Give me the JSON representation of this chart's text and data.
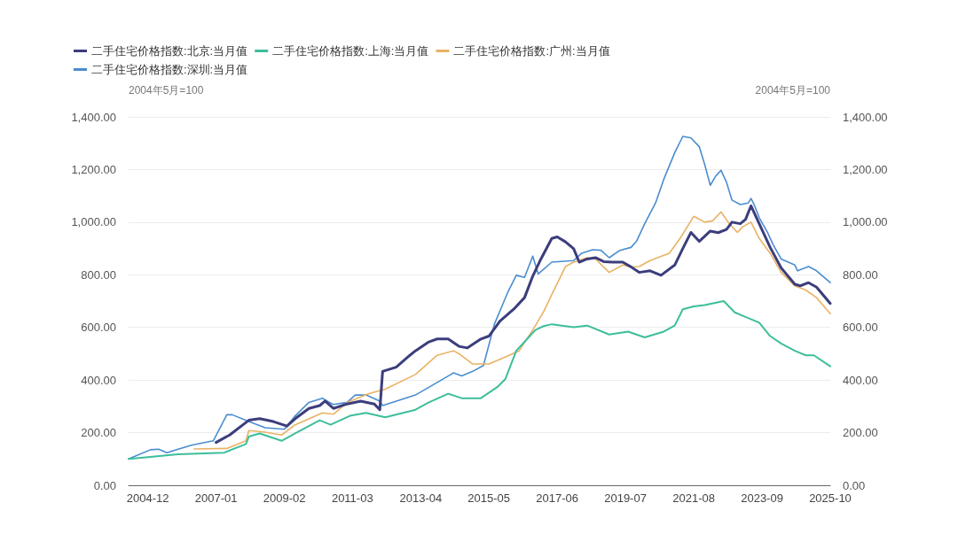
{
  "chart_data": {
    "type": "line",
    "ylabel": "2004年5月=100",
    "y2label": "2004年5月=100",
    "xlim": [
      "2004-05",
      "2025-10"
    ],
    "xticks": [
      "2004-12",
      "2007-01",
      "2009-02",
      "2011-03",
      "2013-04",
      "2015-05",
      "2017-06",
      "2019-07",
      "2021-08",
      "2023-09",
      "2025-10"
    ],
    "ylim": [
      0,
      1400
    ],
    "yticks": [
      {
        "value": 0,
        "label": "0.00"
      },
      {
        "value": 200,
        "label": "200.00"
      },
      {
        "value": 400,
        "label": "400.00"
      },
      {
        "value": 600,
        "label": "600.00"
      },
      {
        "value": 800,
        "label": "800.00"
      },
      {
        "value": 1000,
        "label": "1,000.00"
      },
      {
        "value": 1200,
        "label": "1,200.00"
      },
      {
        "value": 1400,
        "label": "1,400.00"
      }
    ],
    "y2lim": [
      0,
      1400
    ],
    "y2ticks": [
      {
        "value": 0,
        "label": "0.00"
      },
      {
        "value": 200,
        "label": "200.00"
      },
      {
        "value": 400,
        "label": "400.00"
      },
      {
        "value": 600,
        "label": "600.00"
      },
      {
        "value": 800,
        "label": "800.00"
      },
      {
        "value": 1000,
        "label": "1,000.00"
      },
      {
        "value": 1200,
        "label": "1,200.00"
      },
      {
        "value": 1400,
        "label": "1,400.00"
      }
    ],
    "grid": "y",
    "legend": "top left",
    "marker": "none",
    "line_style": "solid",
    "series": [
      {
        "name": "二手住宅价格指数:北京:当月值",
        "color": "#3b3d7c",
        "x": [
          "2007-01",
          "2007-06",
          "2008-01",
          "2008-05",
          "2008-10",
          "2009-03",
          "2009-06",
          "2009-11",
          "2010-03",
          "2010-05",
          "2010-08",
          "2011-01",
          "2011-06",
          "2011-11",
          "2012-01",
          "2012-02",
          "2012-07",
          "2012-12",
          "2013-02",
          "2013-07",
          "2013-10",
          "2014-02",
          "2014-06",
          "2014-09",
          "2015-02",
          "2015-05",
          "2015-09",
          "2016-02",
          "2016-06",
          "2016-09",
          "2016-12",
          "2017-04",
          "2017-06",
          "2017-09",
          "2017-12",
          "2018-02",
          "2018-05",
          "2018-08",
          "2018-11",
          "2019-02",
          "2019-06",
          "2019-09",
          "2019-12",
          "2020-04",
          "2020-08",
          "2021-01",
          "2021-04",
          "2021-07",
          "2021-10",
          "2022-02",
          "2022-05",
          "2022-08",
          "2022-10",
          "2023-01",
          "2023-03",
          "2023-05",
          "2023-08",
          "2023-12",
          "2024-04",
          "2024-09",
          "2024-11",
          "2025-02",
          "2025-05",
          "2025-10"
        ],
        "values": [
          163,
          191,
          247,
          253,
          242,
          225,
          253,
          292,
          303,
          320,
          292,
          309,
          320,
          309,
          287,
          433,
          449,
          494,
          511,
          545,
          556,
          556,
          528,
          522,
          556,
          567,
          624,
          669,
          713,
          795,
          860,
          938,
          944,
          925,
          899,
          848,
          860,
          865,
          850,
          848,
          848,
          830,
          809,
          815,
          798,
          837,
          900,
          961,
          927,
          966,
          960,
          972,
          1000,
          994,
          1010,
          1062,
          994,
          904,
          826,
          764,
          758,
          770,
          753,
          691
        ]
      },
      {
        "name": "二手住宅价格指数:上海:当月值",
        "color": "#3dbe9b",
        "x": [
          "2004-05",
          "2004-12",
          "2005-11",
          "2007-04",
          "2007-12",
          "2008-01",
          "2008-05",
          "2009-01",
          "2009-06",
          "2010-03",
          "2010-07",
          "2011-02",
          "2011-08",
          "2012-03",
          "2013-02",
          "2013-07",
          "2014-02",
          "2014-07",
          "2015-02",
          "2015-08",
          "2015-11",
          "2016-03",
          "2016-07",
          "2016-10",
          "2017-01",
          "2017-04",
          "2017-12",
          "2018-05",
          "2019-01",
          "2019-08",
          "2020-02",
          "2020-09",
          "2021-01",
          "2021-04",
          "2021-08",
          "2021-12",
          "2022-07",
          "2022-11",
          "2023-03",
          "2023-08",
          "2023-12",
          "2024-04",
          "2024-09",
          "2025-01",
          "2025-04",
          "2025-10"
        ],
        "values": [
          100,
          107,
          118,
          124,
          157,
          185,
          197,
          169,
          197,
          247,
          230,
          264,
          275,
          258,
          287,
          315,
          348,
          331,
          331,
          373,
          404,
          511,
          556,
          590,
          605,
          612,
          601,
          607,
          573,
          584,
          562,
          584,
          607,
          669,
          680,
          685,
          700,
          657,
          640,
          618,
          567,
          539,
          511,
          494,
          494,
          452
        ]
      },
      {
        "name": "二手住宅价格指数:广州:当月值",
        "color": "#e9b264",
        "x": [
          "2006-05",
          "2007-05",
          "2007-12",
          "2008-01",
          "2008-07",
          "2009-01",
          "2009-06",
          "2010-04",
          "2010-08",
          "2011-01",
          "2011-09",
          "2012-03",
          "2013-02",
          "2013-10",
          "2014-04",
          "2014-06",
          "2014-11",
          "2015-05",
          "2015-10",
          "2016-04",
          "2016-09",
          "2017-01",
          "2017-04",
          "2017-09",
          "2017-12",
          "2018-05",
          "2018-08",
          "2019-01",
          "2019-06",
          "2019-09",
          "2019-12",
          "2020-04",
          "2020-11",
          "2021-03",
          "2021-08",
          "2021-12",
          "2022-03",
          "2022-06",
          "2022-09",
          "2022-12",
          "2023-02",
          "2023-05",
          "2023-08",
          "2023-12",
          "2024-04",
          "2024-09",
          "2025-01",
          "2025-05",
          "2025-10"
        ],
        "values": [
          138,
          140,
          169,
          208,
          202,
          191,
          230,
          275,
          270,
          315,
          348,
          365,
          421,
          494,
          511,
          500,
          461,
          461,
          483,
          511,
          590,
          660,
          725,
          831,
          848,
          865,
          860,
          809,
          837,
          830,
          831,
          854,
          882,
          938,
          1022,
          1000,
          1005,
          1039,
          994,
          961,
          983,
          1000,
          938,
          882,
          809,
          758,
          742,
          713,
          652
        ]
      },
      {
        "name": "二手住宅价格指数:深圳:当月值",
        "color": "#4a8dd0",
        "x": [
          "2004-05",
          "2005-01",
          "2005-04",
          "2005-07",
          "2006-04",
          "2006-12",
          "2007-05",
          "2007-07",
          "2008-01",
          "2008-07",
          "2009-02",
          "2009-06",
          "2009-11",
          "2010-04",
          "2010-06",
          "2010-08",
          "2011-01",
          "2011-04",
          "2011-08",
          "2012-01",
          "2012-02",
          "2013-02",
          "2014-04",
          "2014-07",
          "2014-11",
          "2015-03",
          "2015-07",
          "2015-12",
          "2016-03",
          "2016-06",
          "2016-09",
          "2016-11",
          "2017-04",
          "2017-12",
          "2018-03",
          "2018-07",
          "2018-10",
          "2019-01",
          "2019-05",
          "2019-09",
          "2019-11",
          "2020-02",
          "2020-06",
          "2020-09",
          "2021-01",
          "2021-04",
          "2021-07",
          "2021-10",
          "2021-12",
          "2022-02",
          "2022-04",
          "2022-06",
          "2022-08",
          "2022-10",
          "2023-01",
          "2023-04",
          "2023-05",
          "2023-06",
          "2023-08",
          "2023-11",
          "2024-01",
          "2024-04",
          "2024-09",
          "2024-10",
          "2025-02",
          "2025-05",
          "2025-10"
        ],
        "values": [
          100,
          135,
          137,
          124,
          152,
          169,
          268,
          268,
          242,
          219,
          213,
          264,
          315,
          331,
          318,
          307,
          315,
          343,
          343,
          320,
          303,
          343,
          427,
          416,
          433,
          455,
          612,
          736,
          798,
          790,
          871,
          803,
          848,
          854,
          882,
          895,
          893,
          865,
          893,
          904,
          927,
          994,
          1073,
          1163,
          1264,
          1326,
          1320,
          1287,
          1219,
          1140,
          1174,
          1197,
          1152,
          1084,
          1067,
          1073,
          1090,
          1070,
          1017,
          961,
          916,
          860,
          837,
          815,
          831,
          815,
          770
        ]
      }
    ]
  }
}
